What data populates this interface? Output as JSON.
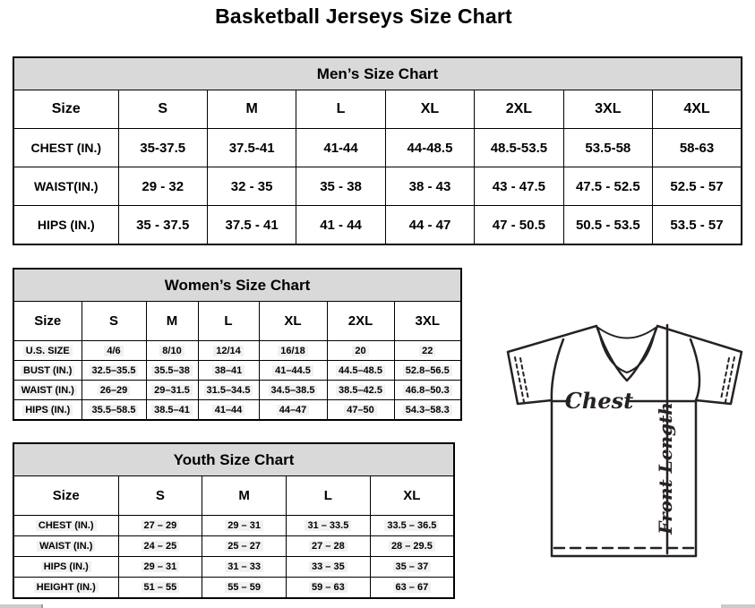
{
  "page": {
    "title": "Basketball Jerseys Size Chart"
  },
  "colors": {
    "header_bg": "#d9d9d9",
    "table_border": "#000000",
    "jersey_line": "#262122",
    "scrollbar": "#cbcbcb"
  },
  "mens": {
    "title": "Men’s Size Chart",
    "columns": [
      "Size",
      "S",
      "M",
      "L",
      "XL",
      "2XL",
      "3XL",
      "4XL"
    ],
    "rows": [
      {
        "label": "CHEST (IN.)",
        "values": [
          "35-37.5",
          "37.5-41",
          "41-44",
          "44-48.5",
          "48.5-53.5",
          "53.5-58",
          "58-63"
        ]
      },
      {
        "label": "WAIST(IN.)",
        "values": [
          "29 - 32",
          "32 - 35",
          "35 - 38",
          "38 - 43",
          "43 - 47.5",
          "47.5 - 52.5",
          "52.5 - 57"
        ]
      },
      {
        "label": "HIPS (IN.)",
        "values": [
          "35 - 37.5",
          "37.5 - 41",
          "41 - 44",
          "44 - 47",
          "47 - 50.5",
          "50.5 - 53.5",
          "53.5 - 57"
        ]
      }
    ]
  },
  "womens": {
    "title": "Women’s Size Chart",
    "columns": [
      "Size",
      "S",
      "M",
      "L",
      "XL",
      "2XL",
      "3XL"
    ],
    "rows": [
      {
        "label": "U.S. SIZE",
        "values": [
          "4/6",
          "8/10",
          "12/14",
          "16/18",
          "20",
          "22"
        ]
      },
      {
        "label": "BUST (IN.)",
        "values": [
          "32.5–35.5",
          "35.5–38",
          "38–41",
          "41–44.5",
          "44.5–48.5",
          "52.8–56.5"
        ]
      },
      {
        "label": "WAIST (IN.)",
        "values": [
          "26–29",
          "29–31.5",
          "31.5–34.5",
          "34.5–38.5",
          "38.5–42.5",
          "46.8–50.3"
        ]
      },
      {
        "label": "HIPS (IN.)",
        "values": [
          "35.5–58.5",
          "38.5–41",
          "41–44",
          "44–47",
          "47–50",
          "54.3–58.3"
        ]
      }
    ]
  },
  "youth": {
    "title": "Youth Size Chart",
    "columns": [
      "Size",
      "S",
      "M",
      "L",
      "XL"
    ],
    "rows": [
      {
        "label": "CHEST (IN.)",
        "values": [
          "27 – 29",
          "29 – 31",
          "31 – 33.5",
          "33.5 – 36.5"
        ]
      },
      {
        "label": "WAIST (IN.)",
        "values": [
          "24 – 25",
          "25 – 27",
          "27 – 28",
          "28 – 29.5"
        ]
      },
      {
        "label": "HIPS (IN.)",
        "values": [
          "29 – 31",
          "31 – 33",
          "33 – 35",
          "35 – 37"
        ]
      },
      {
        "label": "HEIGHT (IN.)",
        "values": [
          "51 – 55",
          "55 – 59",
          "59 – 63",
          "63 – 67"
        ]
      }
    ]
  },
  "diagram": {
    "chest_label": "Chest",
    "front_length_label": "Front Length"
  }
}
